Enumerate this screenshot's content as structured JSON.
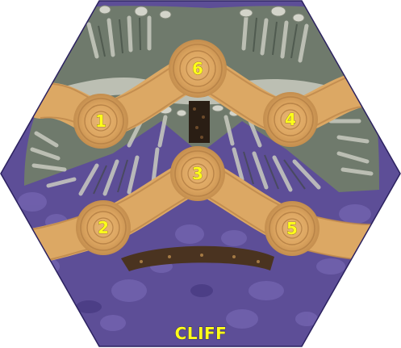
{
  "tile": {
    "name": "CLIFF",
    "colors": {
      "border": "#ffffff",
      "ground": "#5d4e97",
      "ground_dark": "#3f3377",
      "cliff_rock": "#b9b9b0",
      "cliff_shadow": "#4f5a4f",
      "path": "#e2ac6a",
      "path_dark": "#b98448",
      "chasm": "#2a1e14",
      "label": "#ffff1a"
    }
  },
  "spaces": [
    {
      "id": "space-1",
      "label": "1"
    },
    {
      "id": "space-2",
      "label": "2"
    },
    {
      "id": "space-3",
      "label": "3"
    },
    {
      "id": "space-4",
      "label": "4"
    },
    {
      "id": "space-5",
      "label": "5"
    },
    {
      "id": "space-6",
      "label": "6"
    }
  ]
}
